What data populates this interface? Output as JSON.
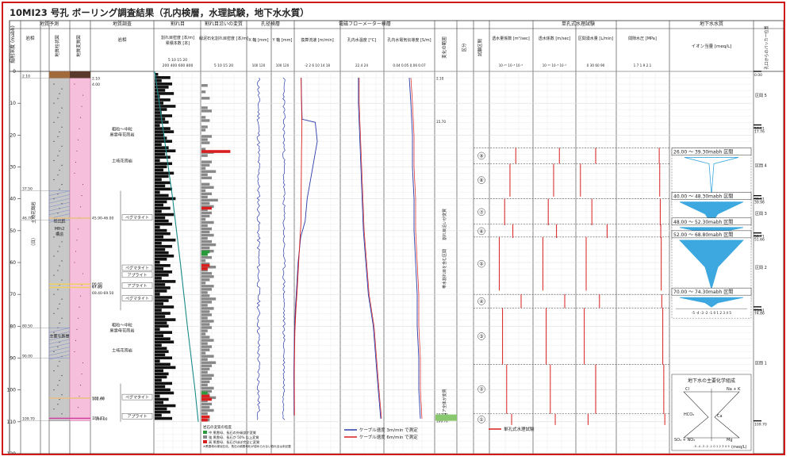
{
  "title": "10MI23 号孔 ボーリング調査結果（孔内検層，水理試験，地下水水質）",
  "colors": {
    "frame": "#d01818",
    "blue": "#2a3aa8",
    "red": "#d81e1e",
    "teal": "#1a8a8a",
    "cyan": "#3da8e0",
    "green": "#2a9a3a",
    "gray": "#888888",
    "pink": "#f6c0dc",
    "rock": "#c8c8c8",
    "hatch": "#7a88c8"
  },
  "headers": {
    "depth": "掘削深度 (mabh)",
    "geo_group": "地質予測",
    "lith_col": "岩相",
    "geo_col": "地質柱状図",
    "alt_col": "地質変質図",
    "survey_group": "地質調査",
    "rock": "岩相",
    "fracture_group": "割れ目",
    "fracture_density": "割れ目密度 [本/m]",
    "fracture_cum": "累積本数 [本]",
    "alteration_group": "割れ目沿いの変質",
    "alteration_density": "緑泥石化割れ目密度 [本/m]",
    "caliper_group": "孔径検層",
    "x_axis": "X 軸 [mm]",
    "y_axis": "Y 軸 [mm]",
    "flowmeter_group": "電磁フローメーター検層",
    "flow_velocity": "換算流速 [m/min]",
    "temperature": "孔内水温度 [°C]",
    "conductivity": "孔内水電気伝導度 [S/m]",
    "change_range": "変化の範囲",
    "section": "区分",
    "hydraulic_group": "単孔式水理試験",
    "test_section": "試験区間",
    "permeability": "透水量係数 [m²/sec]",
    "hyd_cond": "透水係数 [m/sec]",
    "flow_rate": "区間湧水量 [L/min]",
    "pressure": "間隙水圧 [MPa]",
    "gw_group": "地下水水質",
    "ion": "イオン当量 [meq/L]",
    "packer": "孔口からのパッカー位置"
  },
  "ticks": {
    "depth": [
      "0",
      "10",
      "20",
      "30",
      "40",
      "50",
      "60",
      "70",
      "80",
      "90",
      "100",
      "110",
      "120"
    ],
    "fracture_top": "5   10   15   20",
    "fracture_bottom": "200  400  600  800",
    "alteration": "5   10   15   20",
    "caliper": "100      120",
    "flow_velocity": "-2   2   6   10  14  18",
    "temperature": "22.4    24",
    "conductivity": "0.04  0.05  0.06  0.07",
    "permeability": "10⁻¹⁰ 10⁻⁸ 10⁻⁶",
    "hyd_cond": "10⁻¹⁰ 10⁻⁸ 10⁻⁶",
    "flow_rate": "0    30    60    90",
    "pressure": "1.7   1.9   2.1",
    "ion_axis": "-5 -4 -3 -2 -1  0  1  2  3  4  5"
  },
  "geology": {
    "lithology_labels": [
      {
        "depth": 44.3,
        "text": "土岐花崗岩"
      },
      {
        "depth": 53.5,
        "text": "（日）"
      }
    ],
    "core_labels": [
      {
        "depth": 47.4,
        "text": "低比抵"
      },
      {
        "depth": 49.8,
        "text": "Mtn2"
      },
      {
        "depth": 51.5,
        "text": "構造"
      },
      {
        "depth": 83.5,
        "text": "主要な断層"
      }
    ],
    "boundary_depths": [
      {
        "depth": 2.1,
        "text": "2.10"
      },
      {
        "depth": 37.5,
        "text": "37.50"
      },
      {
        "depth": 46.7,
        "text": "46.70"
      },
      {
        "depth": 80.5,
        "text": "80.50"
      },
      {
        "depth": 90.0,
        "text": "90.00"
      },
      {
        "depth": 109.7,
        "text": "109.70"
      }
    ],
    "annotation_depths": [
      {
        "depth": 2.1,
        "text": "2.10"
      },
      {
        "depth": 4.0,
        "text": "4.00"
      },
      {
        "depth": 45.9,
        "text": "45.90-46.00"
      },
      {
        "depth": 66.6,
        "text": "66.60"
      },
      {
        "depth": 67.3,
        "text": "67.30"
      },
      {
        "depth": 67.65,
        "text": "67.65"
      },
      {
        "depth": 69.4,
        "text": "69.40-69.50"
      },
      {
        "depth": 102.4,
        "text": "102.40"
      },
      {
        "depth": 102.66,
        "text": "102.66"
      },
      {
        "depth": 108.72,
        "text": "108.72"
      },
      {
        "depth": 109.0,
        "text": "~109.00"
      }
    ],
    "rock_types": [
      {
        "depth": 18.5,
        "lines": [
          "粗粒〜中粒",
          "黒雲母花崗岩"
        ]
      },
      {
        "depth": 28.5,
        "lines": [
          "土岐花崗岩"
        ]
      },
      {
        "depth": 80.0,
        "lines": [
          "粗粒〜中粒",
          "黒雲母花崗岩"
        ]
      },
      {
        "depth": 88.0,
        "lines": [
          "土岐花崗岩"
        ]
      }
    ],
    "vein_labels": [
      {
        "depth": 46.2,
        "text": "ペグマタイト"
      },
      {
        "depth": 62.0,
        "text": "ペグマタイト"
      },
      {
        "depth": 64.2,
        "text": "アプライト"
      },
      {
        "depth": 67.6,
        "text": "アプライト"
      },
      {
        "depth": 71.6,
        "text": "ペグマタイト"
      },
      {
        "depth": 102.6,
        "text": "ペグマタイト"
      },
      {
        "depth": 108.6,
        "text": "アプライト"
      }
    ]
  },
  "fracture_density": [
    2,
    9,
    4,
    10,
    8,
    6,
    11,
    3,
    9,
    5,
    12,
    7,
    4,
    10,
    6,
    8,
    3,
    9,
    11,
    5,
    7,
    10,
    4,
    8,
    12,
    6,
    9,
    3,
    10,
    7,
    5,
    11,
    8,
    4,
    9,
    6,
    10,
    3,
    8,
    12,
    7,
    5,
    9,
    4,
    11,
    6,
    8,
    10,
    3,
    7,
    9,
    5,
    12,
    4,
    10,
    6,
    8,
    11,
    7,
    3,
    9,
    5,
    10,
    8,
    4,
    12,
    6,
    9,
    7,
    3,
    10,
    8,
    5,
    11,
    4,
    9,
    6,
    12,
    7,
    8,
    3,
    10,
    5,
    9,
    11,
    4,
    7,
    8,
    6,
    10,
    3,
    9,
    12,
    5,
    8,
    7,
    4,
    10,
    6,
    9,
    11,
    3,
    8,
    5,
    12,
    7,
    9,
    4,
    10
  ],
  "fracture_cumulative": [
    [
      0,
      0
    ],
    [
      20,
      170
    ],
    [
      40,
      330
    ],
    [
      60,
      470
    ],
    [
      80,
      600
    ],
    [
      100,
      740
    ],
    [
      110,
      800
    ]
  ],
  "alteration": {
    "gray": [
      0,
      0,
      0,
      0,
      3,
      0,
      2,
      0,
      4,
      0,
      0,
      3,
      5,
      0,
      2,
      4,
      0,
      3,
      2,
      0,
      5,
      3,
      4,
      0,
      2,
      6,
      3,
      0,
      5,
      4,
      2,
      7,
      3,
      5,
      0,
      4,
      6,
      2,
      5,
      3,
      8,
      4,
      6,
      3,
      5,
      4,
      2,
      6,
      3,
      5,
      4,
      6,
      3,
      5,
      7,
      4,
      6,
      3,
      5,
      2,
      4,
      7,
      3,
      5,
      6,
      4,
      2,
      6,
      5,
      3,
      4,
      7,
      5,
      3,
      6,
      4,
      5,
      3,
      6,
      4,
      5,
      3,
      2,
      4,
      6,
      3,
      5,
      4,
      2,
      6,
      3,
      7,
      5,
      4,
      3,
      6,
      5,
      4,
      3,
      6,
      5,
      4,
      7,
      3,
      5,
      4,
      6,
      3,
      0,
      4,
      0
    ],
    "red": [
      [
        24.7,
        14
      ],
      [
        42.5,
        5
      ],
      [
        60.5,
        4
      ],
      [
        61.5,
        3
      ],
      [
        101.5,
        4
      ],
      [
        102.5,
        5
      ],
      [
        108,
        4
      ],
      [
        109,
        3
      ]
    ],
    "green": [
      [
        56.2,
        4
      ],
      [
        57.0,
        3
      ],
      [
        100.5,
        3
      ]
    ],
    "legend_title": "岩石の変質の程度",
    "legend": [
      {
        "color": "#2a9a3a",
        "text": "中  黒雲母、長石の外縁部が変質"
      },
      {
        "color": "#888888",
        "text": "強  黒雲母、長石が 50% 以上変質"
      },
      {
        "color": "#d81e1e",
        "text": "高  黒雲母、長石がほぼ完全に変質"
      }
    ],
    "legend_note": "※黒雲母の緑泥石化、長石の絹雲母化が認められない割れ目は未記載"
  },
  "flowmeter_legend": [
    {
      "color": "#2a3aa8",
      "text": "ケーブル速度 3m/min で測定"
    },
    {
      "color": "#d81e1e",
      "text": "ケーブル速度 6m/min で測定"
    }
  ],
  "change_column": {
    "labels": [
      {
        "depth": 48,
        "text": "割れ目沿いが変質"
      },
      {
        "depth": 62,
        "text": "帯水割れ目を含む区間"
      },
      {
        "depth": 104,
        "text": "コア全体が変質"
      }
    ],
    "small_labels": [
      {
        "depth": 2.1,
        "text": "2.10"
      },
      {
        "depth": 15.7,
        "text": "15.70"
      },
      {
        "depth": 107.7,
        "text": "107.70"
      },
      {
        "depth": 109.7,
        "text": "109.70"
      }
    ]
  },
  "hydraulic": {
    "legend": "単孔式水理試験",
    "sections": [
      {
        "n": "①",
        "top": 107.5,
        "bottom": 111
      },
      {
        "n": "②",
        "top": 92,
        "bottom": 107.5
      },
      {
        "n": "③",
        "top": 74.3,
        "bottom": 92
      },
      {
        "n": "④",
        "top": 70,
        "bottom": 74.3
      },
      {
        "n": "⑤",
        "top": 52,
        "bottom": 68.8
      },
      {
        "n": "⑥",
        "top": 48,
        "bottom": 52.3
      },
      {
        "n": "⑦",
        "top": 40,
        "bottom": 48.3
      },
      {
        "n": "⑧",
        "top": 29,
        "bottom": 39.3
      },
      {
        "n": "⑨",
        "top": 24,
        "bottom": 29
      }
    ],
    "permeability_vals": [
      0.52,
      0.4,
      0.3,
      0.75,
      0.22,
      0.55,
      0.35,
      0.48,
      0.62
    ],
    "hyd_cond_vals": [
      0.52,
      0.4,
      0.3,
      0.75,
      0.22,
      0.55,
      0.35,
      0.48,
      0.62
    ],
    "flow_vals": [
      0.3,
      0.5,
      0.2,
      0.6,
      0.25,
      0.8,
      0.4,
      0.1,
      0.5
    ],
    "pressure_vals": [
      0.94,
      0.92,
      0.9,
      0.88,
      0.87,
      0.86,
      0.85,
      0.84,
      0.83
    ]
  },
  "groundwater": {
    "intervals": [
      {
        "label": "26.00 ～ 39.30mabh 区間",
        "section": "区間 5",
        "top": 26,
        "bottom": 39.3
      },
      {
        "label": "40.00 ～ 48.30mabh 区間",
        "section": "区間 4",
        "top": 40,
        "bottom": 48.3
      },
      {
        "label": "48.00 ～ 52.30mabh 区間",
        "section": "区間 3",
        "top": 48,
        "bottom": 52.3
      },
      {
        "label": "52.00 ～ 68.80mabh 区間",
        "section": "区間 2",
        "top": 52,
        "bottom": 68.8
      },
      {
        "label": "70.00 ～ 74.30mabh 区間",
        "section": "区間 1",
        "top": 70,
        "bottom": 74.3
      }
    ],
    "packer_labels": [
      {
        "depth": 0,
        "text": "0.00"
      },
      {
        "depth": 16.81,
        "text": "16.81"
      },
      {
        "depth": 17.76,
        "text": "17.76"
      },
      {
        "depth": 39.01,
        "text": "39.01"
      },
      {
        "depth": 39.96,
        "text": "39.96"
      },
      {
        "depth": 50.71,
        "text": "50.71"
      },
      {
        "depth": 51.66,
        "text": "51.66"
      },
      {
        "depth": 73.91,
        "text": "73.91"
      },
      {
        "depth": 74.86,
        "text": "74.86"
      },
      {
        "depth": 109.7,
        "text": "109.70"
      }
    ],
    "section_labels": [
      {
        "depth": 8,
        "text": "区間 5"
      },
      {
        "depth": 30,
        "text": "区間 4"
      },
      {
        "depth": 45,
        "text": "区間 3"
      },
      {
        "depth": 62,
        "text": "区間 2"
      },
      {
        "depth": 92,
        "text": "区間 1"
      }
    ],
    "legend_title": "地下水の主要化学組成",
    "legend_labels": [
      "Cl",
      "Na + K",
      "HCO₃",
      "Ca",
      "SO₄ + NO₃",
      "Mg",
      "(meq/L)"
    ]
  },
  "chart_data": {
    "type": "line",
    "title": "10MI23 号孔 ボーリング調査結果（孔内検層，水理試験，地下水水質）",
    "ylabel": "掘削深度 (mabh)",
    "ylim": [
      0,
      120
    ],
    "y_ticks": [
      0,
      10,
      20,
      30,
      40,
      50,
      60,
      70,
      80,
      90,
      100,
      110,
      120
    ],
    "series": [
      {
        "name": "ケーブル速度 3m/min で測定",
        "x": [
          1,
          1.2,
          1.4,
          1.5,
          8,
          9,
          4,
          3,
          0.8,
          -0.5,
          -1.2,
          -1.8,
          -2.3,
          -2.6,
          -2.5
        ],
        "y": [
          2,
          8,
          13,
          15,
          16,
          22,
          40,
          47,
          52,
          60,
          68,
          74,
          82,
          95,
          108
        ]
      },
      {
        "name": "ケーブル速度 6m/min で測定",
        "x": [
          1,
          1.1,
          1.3,
          1.4,
          1.2,
          1,
          0.9,
          0.4,
          -0.3,
          -1,
          -1.6,
          -2.1,
          -2.4,
          -2.3
        ],
        "y": [
          2,
          8,
          13,
          17,
          25,
          40,
          48,
          53,
          61,
          69,
          75,
          82,
          95,
          108
        ]
      }
    ],
    "temperature": {
      "x": [
        23.1,
        23.1,
        23.15,
        23.2,
        23.25,
        23.3,
        23.4,
        23.5,
        23.7,
        23.8,
        23.9,
        24.0
      ],
      "y": [
        2,
        10,
        20,
        30,
        40,
        50,
        60,
        70,
        80,
        90,
        100,
        109
      ]
    },
    "conductivity": {
      "x": [
        0.055,
        0.056,
        0.057,
        0.057,
        0.058,
        0.058,
        0.059,
        0.06,
        0.06,
        0.061,
        0.061,
        0.062
      ],
      "y": [
        2,
        10,
        20,
        30,
        40,
        50,
        60,
        70,
        80,
        90,
        100,
        109
      ]
    }
  }
}
